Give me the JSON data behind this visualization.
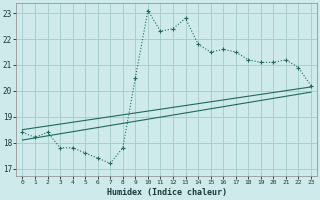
{
  "xlabel": "Humidex (Indice chaleur)",
  "background_color": "#ceeaea",
  "grid_color": "#aacece",
  "line_color": "#1a6b5a",
  "xlim": [
    -0.5,
    23.5
  ],
  "ylim": [
    16.7,
    23.4
  ],
  "yticks": [
    17,
    18,
    19,
    20,
    21,
    22,
    23
  ],
  "xticks": [
    0,
    1,
    2,
    3,
    4,
    5,
    6,
    7,
    8,
    9,
    10,
    11,
    12,
    13,
    14,
    15,
    16,
    17,
    18,
    19,
    20,
    21,
    22,
    23
  ],
  "main_line": {
    "x": [
      0,
      1,
      2,
      3,
      4,
      5,
      6,
      7,
      8,
      9,
      10,
      11,
      12,
      13,
      14,
      15,
      16,
      17,
      18,
      19,
      20,
      21,
      22,
      23
    ],
    "y": [
      18.4,
      18.2,
      18.4,
      17.8,
      17.8,
      17.6,
      17.4,
      17.2,
      17.8,
      20.5,
      23.1,
      22.3,
      22.4,
      22.8,
      21.8,
      21.5,
      21.6,
      21.5,
      21.2,
      21.1,
      21.1,
      21.2,
      20.9,
      20.2
    ]
  },
  "regression_line1": {
    "x": [
      0,
      23
    ],
    "y": [
      18.5,
      20.15
    ]
  },
  "regression_line2": {
    "x": [
      0,
      23
    ],
    "y": [
      18.1,
      19.95
    ]
  }
}
